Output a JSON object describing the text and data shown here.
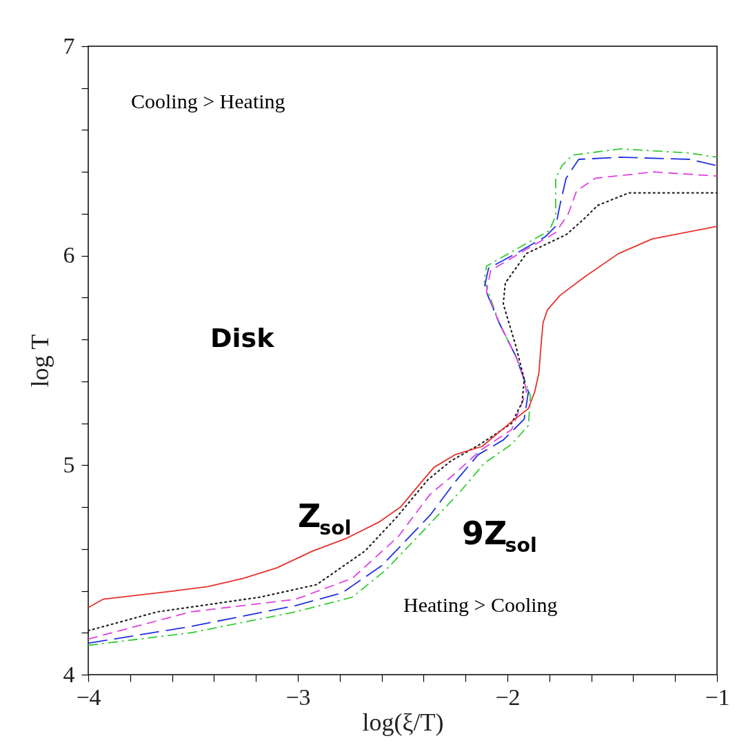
{
  "chart_data": {
    "type": "line",
    "xlabel": "log(ξ/T)",
    "ylabel": "log T",
    "xlim": [
      -4,
      -1
    ],
    "ylim": [
      4,
      7
    ],
    "xticks": [
      -4,
      {
        "value": -3.8,
        "label": null
      },
      {
        "value": -3.6,
        "label": null
      },
      {
        "value": -3.4,
        "label": null
      },
      {
        "value": -3.2,
        "label": null
      },
      -3,
      {
        "value": -2.8,
        "label": null
      },
      {
        "value": -2.6,
        "label": null
      },
      {
        "value": -2.4,
        "label": null
      },
      {
        "value": -2.2,
        "label": null
      },
      -2,
      {
        "value": -1.8,
        "label": null
      },
      {
        "value": -1.6,
        "label": null
      },
      {
        "value": -1.4,
        "label": null
      },
      {
        "value": -1.2,
        "label": null
      },
      -1
    ],
    "yticks": [
      4,
      {
        "value": 4.2,
        "label": null
      },
      {
        "value": 4.4,
        "label": null
      },
      {
        "value": 4.6,
        "label": null
      },
      {
        "value": 4.8,
        "label": null
      },
      5,
      {
        "value": 5.2,
        "label": null
      },
      {
        "value": 5.4,
        "label": null
      },
      {
        "value": 5.6,
        "label": null
      },
      {
        "value": 5.8,
        "label": null
      },
      6,
      {
        "value": 6.2,
        "label": null
      },
      {
        "value": 6.4,
        "label": null
      },
      {
        "value": 6.6,
        "label": null
      },
      {
        "value": 6.8,
        "label": null
      },
      7
    ],
    "grid": false,
    "marker": "none",
    "series": [
      {
        "color": "#e8302a",
        "line_style": "solid",
        "x": [
          -4.0,
          -3.93,
          -3.76,
          -3.59,
          -3.43,
          -3.26,
          -3.1,
          -2.93,
          -2.77,
          -2.61,
          -2.51,
          -2.41,
          -2.35,
          -2.25,
          -2.12,
          -1.99,
          -1.9,
          -1.87,
          -1.85,
          -1.84,
          -1.83,
          -1.81,
          -1.75,
          -1.63,
          -1.47,
          -1.31,
          -1.0
        ],
        "values": [
          4.32,
          4.36,
          4.38,
          4.4,
          4.42,
          4.46,
          4.51,
          4.59,
          4.65,
          4.73,
          4.8,
          4.92,
          4.99,
          5.05,
          5.09,
          5.2,
          5.27,
          5.35,
          5.44,
          5.57,
          5.68,
          5.74,
          5.81,
          5.9,
          6.01,
          6.08,
          6.14
        ]
      },
      {
        "color": "#222222",
        "line_style": "dotted",
        "x": [
          -4.0,
          -3.67,
          -3.18,
          -2.91,
          -2.68,
          -2.53,
          -2.38,
          -2.27,
          -2.13,
          -1.98,
          -1.93,
          -1.92,
          -1.96,
          -2.02,
          -2.01,
          -1.91,
          -1.72,
          -1.63,
          -1.57,
          -1.42,
          -1.0
        ],
        "values": [
          4.21,
          4.3,
          4.37,
          4.43,
          4.59,
          4.75,
          4.93,
          5.02,
          5.1,
          5.2,
          5.3,
          5.41,
          5.57,
          5.77,
          5.87,
          6.01,
          6.1,
          6.18,
          6.24,
          6.3,
          6.3
        ]
      },
      {
        "color": "#e040e0",
        "line_style": "dashed",
        "x": [
          -4.0,
          -3.51,
          -3.01,
          -2.74,
          -2.52,
          -2.37,
          -2.25,
          -2.13,
          -1.98,
          -1.91,
          -1.92,
          -1.96,
          -2.04,
          -2.1,
          -2.08,
          -1.91,
          -1.77,
          -1.71,
          -1.67,
          -1.58,
          -1.3,
          -1.0
        ],
        "values": [
          4.17,
          4.3,
          4.36,
          4.46,
          4.66,
          4.86,
          4.96,
          5.07,
          5.17,
          5.35,
          5.41,
          5.52,
          5.68,
          5.83,
          5.93,
          6.03,
          6.11,
          6.2,
          6.31,
          6.37,
          6.4,
          6.38
        ]
      },
      {
        "color": "#2030e0",
        "line_style": "longdash",
        "x": [
          -4.0,
          -3.51,
          -3.01,
          -2.79,
          -2.6,
          -2.37,
          -2.25,
          -2.14,
          -2.02,
          -1.92,
          -1.9,
          -1.96,
          -2.04,
          -2.11,
          -2.09,
          -1.96,
          -1.82,
          -1.77,
          -1.75,
          -1.72,
          -1.66,
          -1.46,
          -1.13,
          -1.0
        ],
        "values": [
          4.15,
          4.23,
          4.33,
          4.39,
          4.52,
          4.76,
          4.92,
          5.05,
          5.12,
          5.22,
          5.35,
          5.52,
          5.68,
          5.85,
          5.94,
          6.01,
          6.09,
          6.14,
          6.24,
          6.37,
          6.46,
          6.47,
          6.46,
          6.43
        ]
      },
      {
        "color": "#33cc33",
        "line_style": "dashdot",
        "x": [
          -4.0,
          -3.51,
          -3.01,
          -2.74,
          -2.58,
          -2.37,
          -2.22,
          -2.11,
          -1.98,
          -1.9,
          -1.89,
          -1.96,
          -2.04,
          -2.11,
          -2.1,
          -1.96,
          -1.8,
          -1.77,
          -1.77,
          -1.74,
          -1.69,
          -1.46,
          -1.13,
          -1.0
        ],
        "values": [
          4.14,
          4.2,
          4.3,
          4.37,
          4.5,
          4.72,
          4.88,
          5.01,
          5.1,
          5.19,
          5.33,
          5.52,
          5.68,
          5.88,
          5.95,
          6.03,
          6.12,
          6.19,
          6.37,
          6.43,
          6.48,
          6.51,
          6.49,
          6.47
        ]
      }
    ],
    "annotations": [
      "Cooling > Heating",
      "Heating > Cooling",
      "Disk",
      "Z$_{sol}$",
      "9Z$_{sol}$"
    ]
  }
}
